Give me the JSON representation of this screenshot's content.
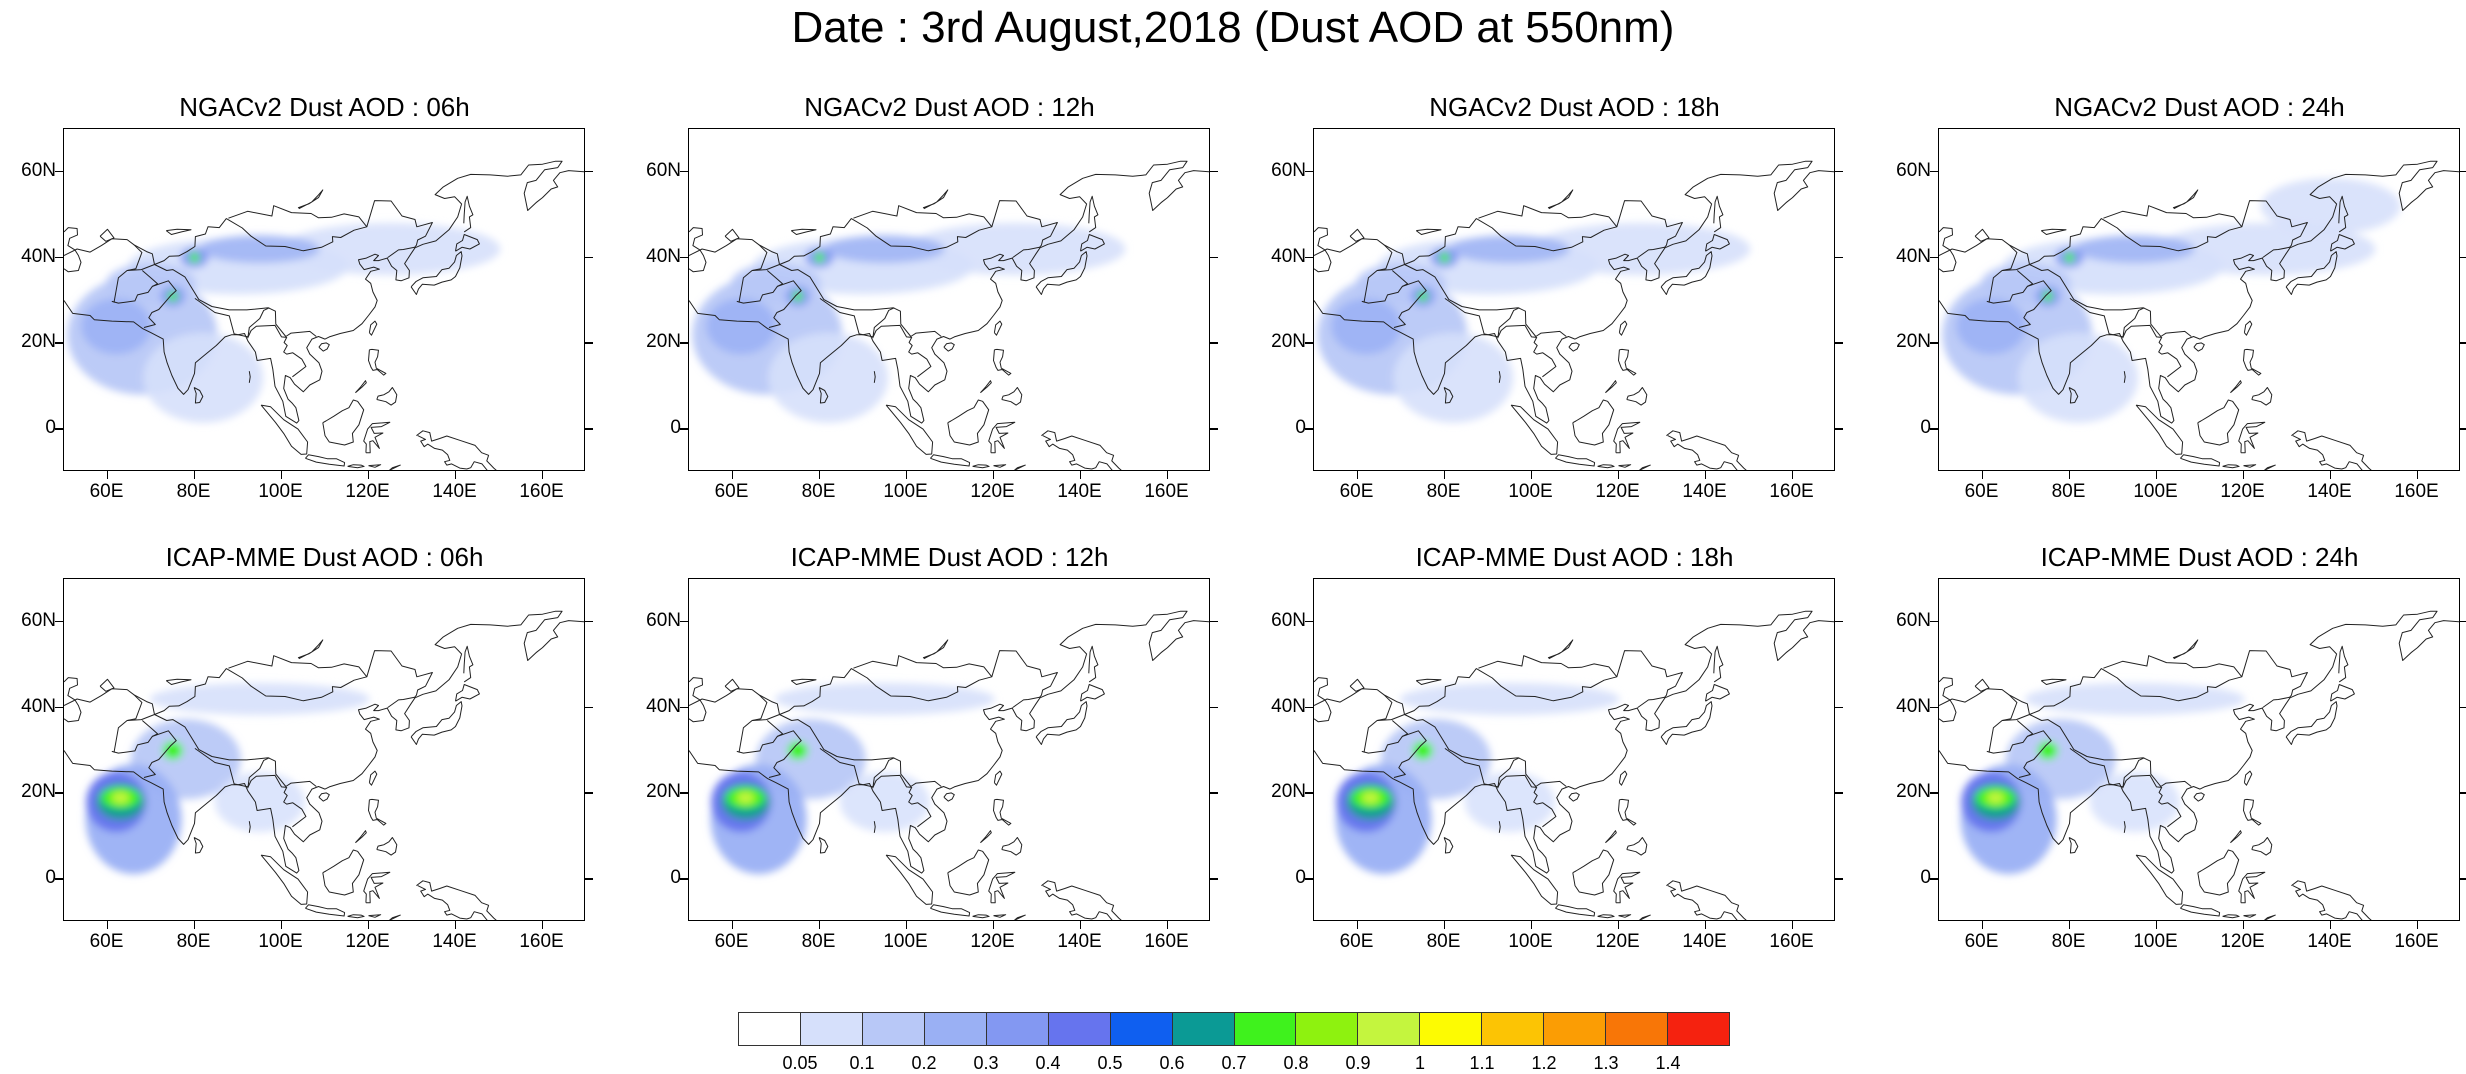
{
  "title": "Date : 3rd August,2018 (Dust AOD at 550nm)",
  "panels": [
    {
      "title": "NGACv2 Dust AOD : 06h",
      "model": "NGACv2",
      "hour": "06h"
    },
    {
      "title": "NGACv2 Dust AOD : 12h",
      "model": "NGACv2",
      "hour": "12h"
    },
    {
      "title": "NGACv2 Dust AOD : 18h",
      "model": "NGACv2",
      "hour": "18h"
    },
    {
      "title": "NGACv2 Dust AOD : 24h",
      "model": "NGACv2",
      "hour": "24h"
    },
    {
      "title": "ICAP-MME Dust AOD : 06h",
      "model": "ICAP-MME",
      "hour": "06h"
    },
    {
      "title": "ICAP-MME Dust AOD : 12h",
      "model": "ICAP-MME",
      "hour": "12h"
    },
    {
      "title": "ICAP-MME Dust AOD : 18h",
      "model": "ICAP-MME",
      "hour": "18h"
    },
    {
      "title": "ICAP-MME Dust AOD : 24h",
      "model": "ICAP-MME",
      "hour": "24h"
    }
  ],
  "map": {
    "lon_range": [
      50,
      170
    ],
    "lat_range": [
      -10,
      70
    ],
    "lat_ticks": [
      {
        "value": 60,
        "label": "60N"
      },
      {
        "value": 40,
        "label": "40N"
      },
      {
        "value": 20,
        "label": "20N"
      },
      {
        "value": 0,
        "label": "0"
      }
    ],
    "lon_ticks": [
      {
        "value": 60,
        "label": "60E"
      },
      {
        "value": 80,
        "label": "80E"
      },
      {
        "value": 100,
        "label": "100E"
      },
      {
        "value": 120,
        "label": "120E"
      },
      {
        "value": 140,
        "label": "140E"
      },
      {
        "value": 160,
        "label": "160E"
      }
    ]
  },
  "colorbar": {
    "labels": [
      "0.05",
      "0.1",
      "0.2",
      "0.3",
      "0.4",
      "0.5",
      "0.6",
      "0.7",
      "0.8",
      "0.9",
      "1",
      "1.1",
      "1.2",
      "1.3",
      "1.4"
    ],
    "colors": [
      "#ffffff",
      "#d6e0fb",
      "#b8c8f7",
      "#9ab0f4",
      "#8398f2",
      "#6674ee",
      "#0f5ff0",
      "#0b9a95",
      "#3ff21d",
      "#8ef20f",
      "#c4f53e",
      "#fdfb02",
      "#fcc404",
      "#fb9d04",
      "#f87607",
      "#f5220f"
    ]
  }
}
